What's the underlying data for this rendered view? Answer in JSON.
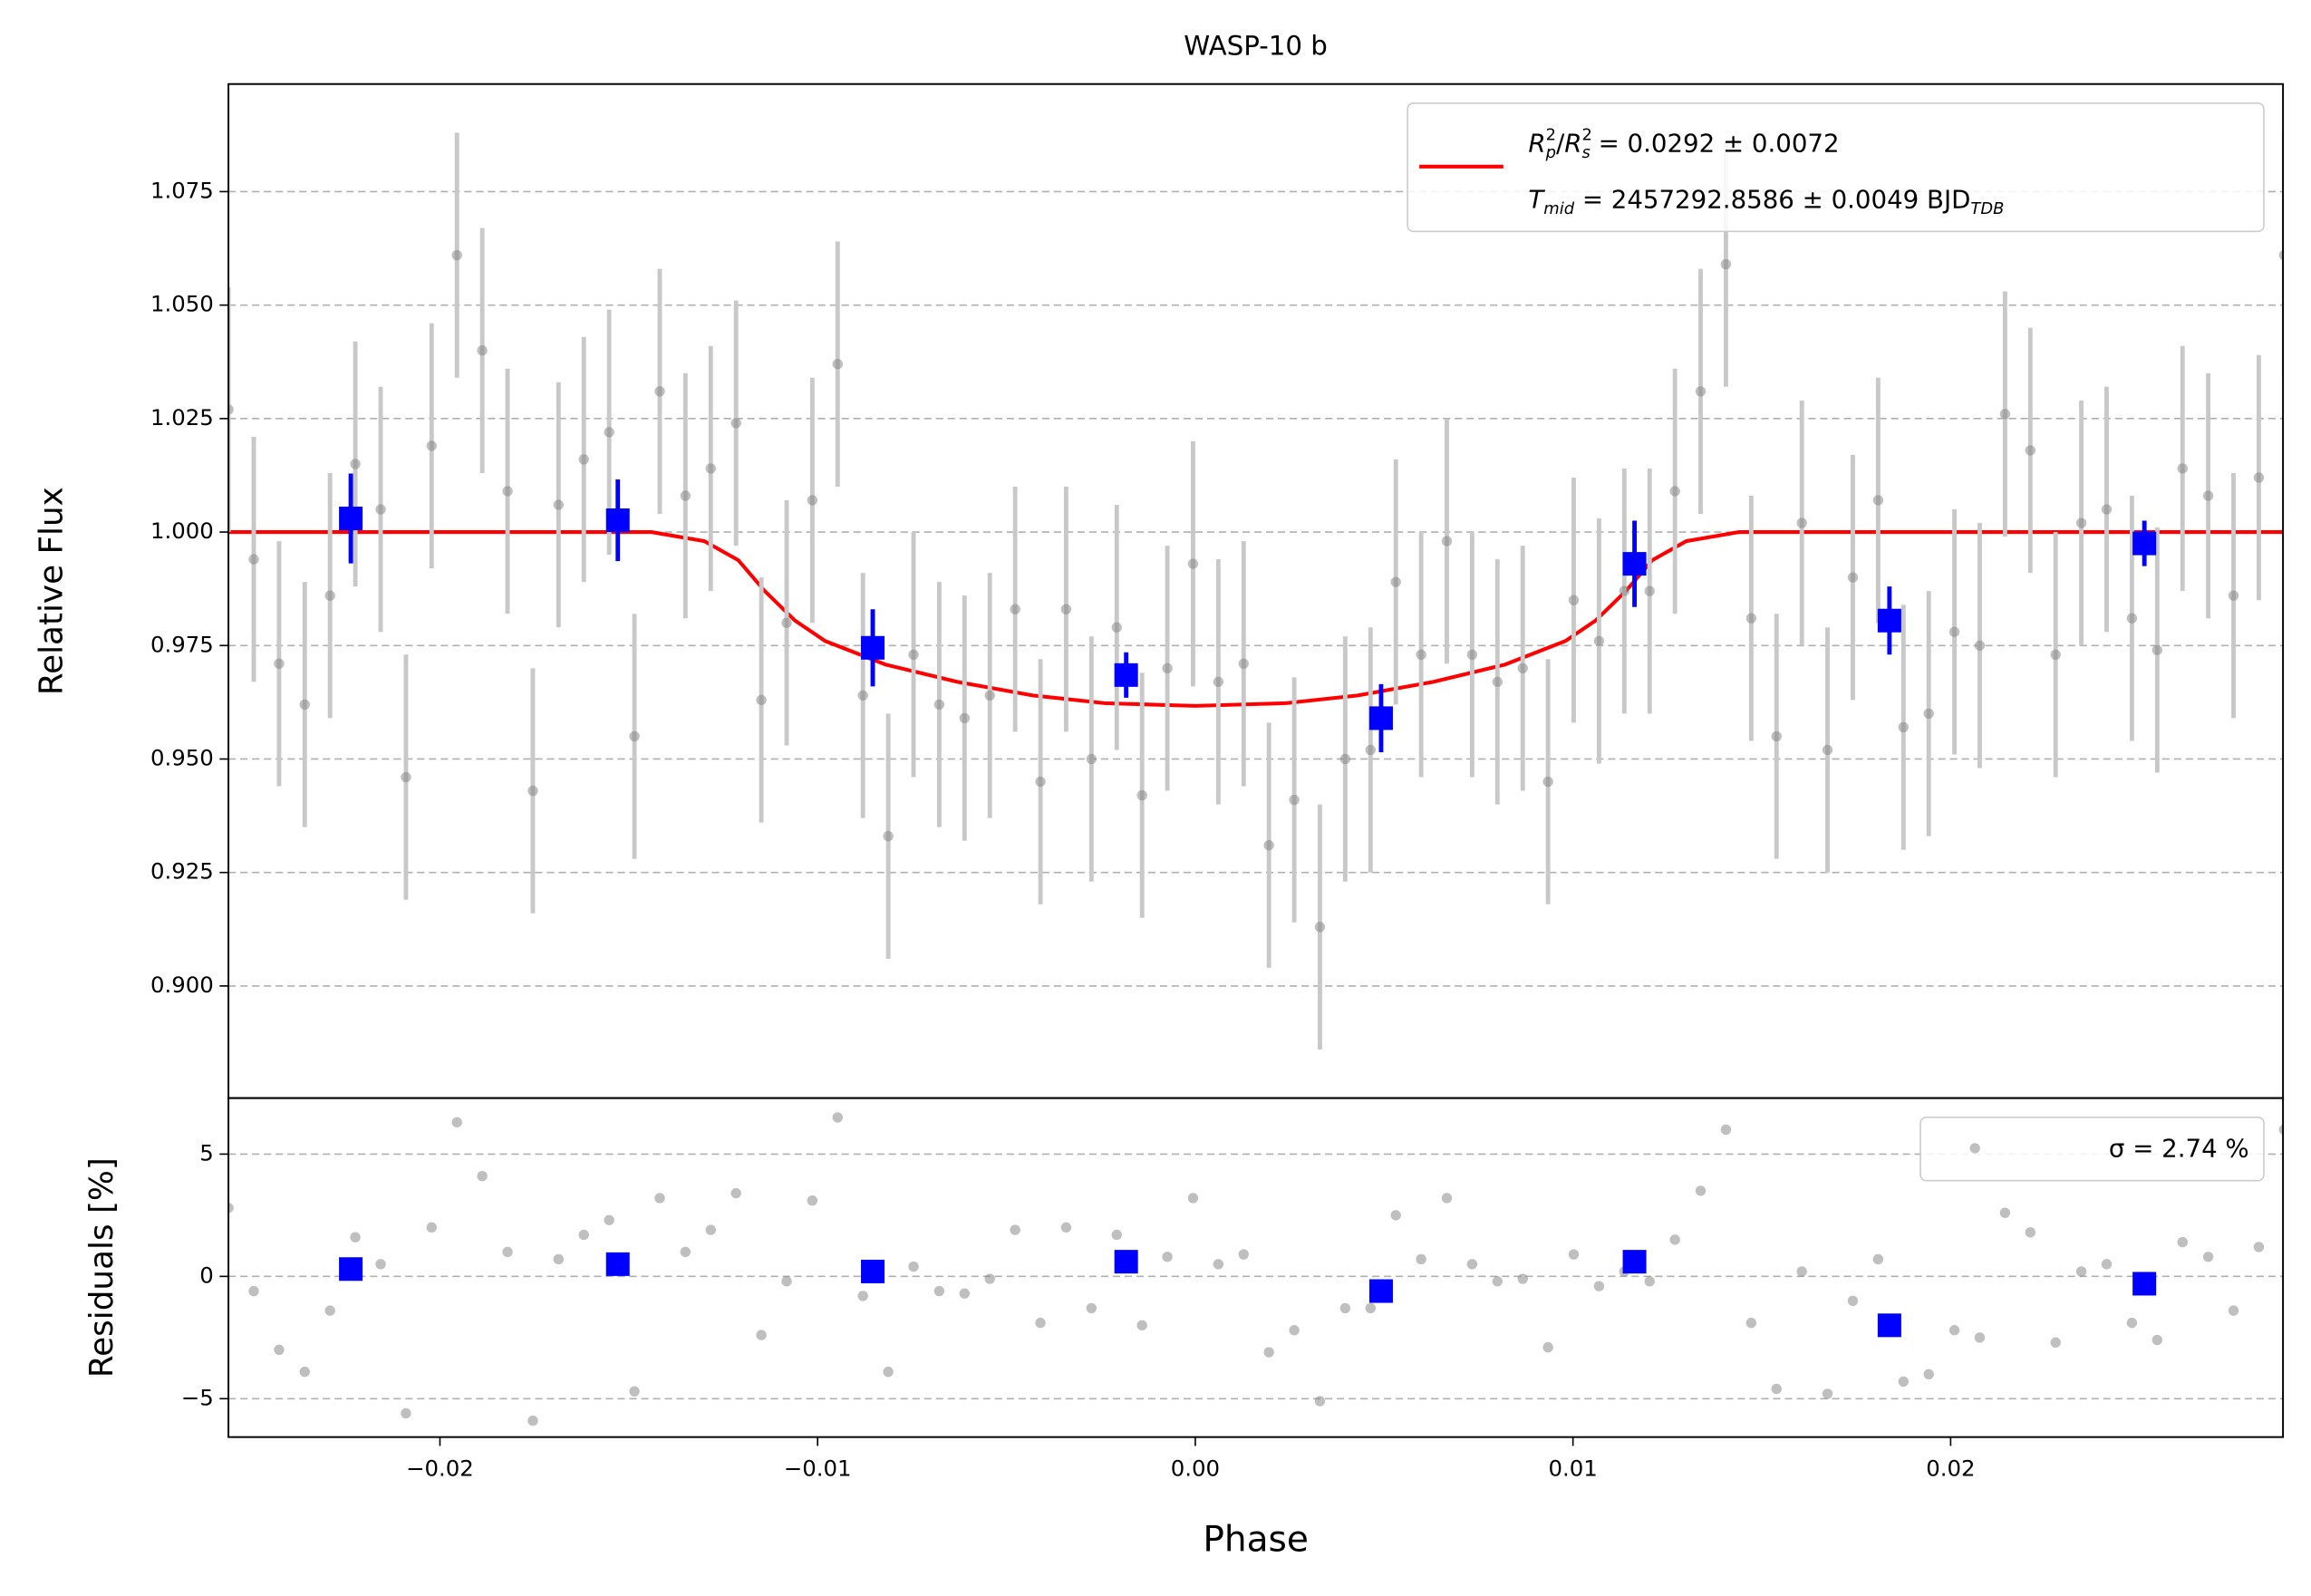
{
  "chart_data": [
    {
      "type": "scatter",
      "title": "WASP-10 b",
      "ylabel": "Relative Flux",
      "xlim": [
        -0.0256,
        0.0288
      ],
      "ylim": [
        0.8753,
        1.0987
      ],
      "yticks": [
        {
          "value": 0.9,
          "label": "0.900"
        },
        0.925,
        {
          "value": 0.95,
          "label": "0.950"
        },
        0.975,
        {
          "value": 1.0,
          "label": "1.000"
        },
        1.025,
        {
          "value": 1.05,
          "label": "1.050"
        },
        1.075
      ],
      "grid": true,
      "legend": "upper right",
      "annotation": [
        "T",
        "mid",
        " = 2457292.8586 ± 0.0049 BJD",
        "TDB"
      ],
      "series": [
        {
          "name": [
            "R",
            "2",
            "p",
            "/",
            "R",
            "2",
            "s",
            " = 0.0292 ± 0.0072"
          ],
          "type": "line",
          "color": "#ff0000",
          "x": [
            -0.0256,
            -0.0144,
            -0.013,
            -0.0121,
            -0.0114,
            -0.0106,
            -0.0098,
            -0.0082,
            -0.0063,
            -0.0043,
            -0.0024,
            0,
            0.0024,
            0.0043,
            0.0063,
            0.0082,
            0.0098,
            0.0106,
            0.0114,
            0.0121,
            0.013,
            0.0144,
            0.0288
          ],
          "values": [
            1,
            1,
            0.998,
            0.9938,
            0.987,
            0.9805,
            0.976,
            0.9708,
            0.967,
            0.964,
            0.9623,
            0.9617,
            0.9623,
            0.964,
            0.967,
            0.9708,
            0.976,
            0.9805,
            0.987,
            0.9938,
            0.998,
            1,
            1
          ]
        },
        {
          "type": "errorbar",
          "color": "#808080",
          "error": 0.027,
          "x": [
            -0.0256,
            -0.02493,
            -0.02426,
            -0.02358,
            -0.02291,
            -0.02224,
            -0.02157,
            -0.0209,
            -0.02022,
            -0.01955,
            -0.01888,
            -0.01821,
            -0.01754,
            -0.01686,
            -0.01619,
            -0.01552,
            -0.01485,
            -0.01418,
            -0.0135,
            -0.01283,
            -0.01216,
            -0.01149,
            -0.01082,
            -0.01014,
            -0.00947,
            -0.0088,
            -0.00813,
            -0.00746,
            -0.00678,
            -0.00611,
            -0.00544,
            -0.00477,
            -0.0041,
            -0.00342,
            -0.00275,
            -0.00208,
            -0.00141,
            -0.00074,
            -6e-05,
            0.00061,
            0.00128,
            0.00195,
            0.00262,
            0.0033,
            0.00397,
            0.00464,
            0.00531,
            0.00598,
            0.00666,
            0.00733,
            0.008,
            0.00867,
            0.00934,
            0.01002,
            0.01069,
            0.01136,
            0.01203,
            0.0127,
            0.01338,
            0.01405,
            0.01472,
            0.01539,
            0.01606,
            0.01674,
            0.01741,
            0.01808,
            0.01875,
            0.01942,
            0.0201,
            0.02077,
            0.02144,
            0.02211,
            0.02278,
            0.02346,
            0.02413,
            0.0248,
            0.02547,
            0.02614,
            0.02682,
            0.02749,
            0.02816,
            0.02883
          ],
          "values": [
            1.027,
            0.994,
            0.971,
            0.962,
            0.986,
            1.015,
            1.005,
            0.946,
            1.019,
            1.061,
            1.04,
            1.009,
            0.943,
            1.006,
            1.016,
            1.022,
            0.955,
            1.031,
            1.008,
            1.014,
            1.024,
            0.963,
            0.98,
            1.007,
            1.037,
            0.964,
            0.933,
            0.973,
            0.962,
            0.959,
            0.964,
            0.983,
            0.945,
            0.983,
            0.95,
            0.979,
            0.942,
            0.97,
            0.993,
            0.967,
            0.971,
            0.931,
            0.941,
            0.913,
            0.95,
            0.952,
            0.989,
            0.973,
            0.998,
            0.973,
            0.967,
            0.97,
            0.945,
            0.985,
            0.976,
            0.987,
            0.987,
            1.009,
            1.031,
            1.059,
            0.981,
            0.955,
            1.002,
            0.952,
            0.99,
            1.007,
            0.957,
            0.96,
            0.978,
            0.975,
            1.026,
            1.018,
            0.973,
            1.002,
            1.005,
            0.981,
            0.974,
            1.014,
            1.008,
            0.986,
            1.012,
            1.061
          ]
        },
        {
          "type": "errorbar",
          "color": "#0000ff",
          "x": [
            -0.02236,
            -0.01529,
            -0.00854,
            -0.00183,
            0.00492,
            0.01163,
            0.01838,
            0.02513
          ],
          "values": [
            1.003,
            1.0026,
            0.9745,
            0.9685,
            0.959,
            0.993,
            0.9805,
            0.9975
          ],
          "errors": [
            0.0099,
            0.009,
            0.0085,
            0.005,
            0.0075,
            0.0095,
            0.0075,
            0.005
          ]
        }
      ]
    },
    {
      "type": "scatter",
      "ylabel": "Residuals [%]",
      "xlabel": "Phase",
      "xlim": [
        -0.0256,
        0.0288
      ],
      "ylim": [
        -6.57,
        7.29
      ],
      "xticks": [
        {
          "value": -0.02,
          "label": "−0.02"
        },
        {
          "value": -0.01,
          "label": "−0.01"
        },
        {
          "value": 0,
          "label": "0.00"
        },
        0.01,
        0.02
      ],
      "yticks": [
        {
          "value": -5,
          "label": "−5"
        },
        0,
        5
      ],
      "grid": true,
      "legend": "upper right",
      "series": [
        {
          "name": "σ = 2.74 %",
          "color": "#808080",
          "values": [
            2.8,
            -0.6,
            -3.0,
            -3.9,
            -1.4,
            1.6,
            0.5,
            -5.6,
            2.0,
            6.3,
            4.1,
            1.0,
            -5.9,
            0.7,
            1.7,
            2.3,
            -4.7,
            3.2,
            1.0,
            1.9,
            3.4,
            -2.4,
            -0.2,
            3.1,
            6.5,
            -0.8,
            -3.9,
            0.4,
            -0.6,
            -0.7,
            -0.1,
            1.9,
            -1.9,
            2.0,
            -1.3,
            1.7,
            -2.0,
            0.8,
            3.2,
            0.5,
            0.9,
            -3.1,
            -2.2,
            -5.1,
            -1.3,
            -1.3,
            2.5,
            0.7,
            3.2,
            0.5,
            -0.2,
            -0.1,
            -2.9,
            0.9,
            -0.4,
            0.2,
            -0.2,
            1.5,
            3.5,
            6.0,
            -1.9,
            -4.6,
            0.2,
            -4.8,
            -1.0,
            0.7,
            -4.3,
            -4.0,
            -2.2,
            -2.5,
            2.6,
            1.8,
            -2.7,
            0.2,
            0.5,
            -1.9,
            -2.6,
            1.4,
            0.8,
            -1.4,
            1.2,
            6.0
          ]
        },
        {
          "color": "#0000ff",
          "values": [
            0.3,
            0.5,
            0.2,
            0.6,
            -0.6,
            0.6,
            -2.0,
            -0.3
          ]
        }
      ]
    }
  ]
}
